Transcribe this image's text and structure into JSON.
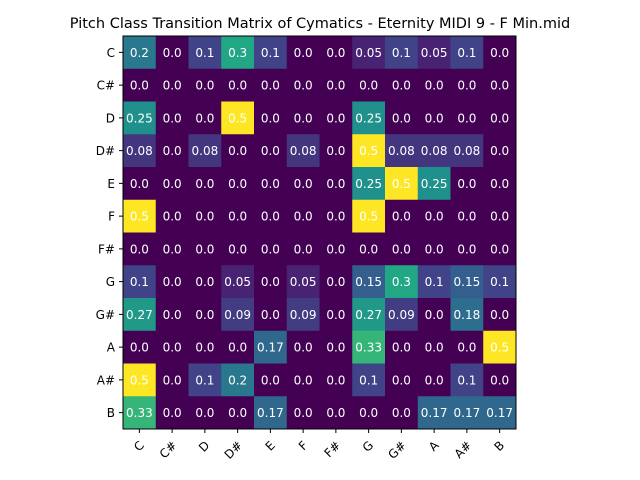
{
  "chart_data": {
    "type": "heatmap",
    "title": "Pitch Class Transition Matrix of Cymatics - Eternity MIDI 9 - F Min.mid",
    "xlabel": "",
    "ylabel": "",
    "x_categories": [
      "C",
      "C#",
      "D",
      "D#",
      "E",
      "F",
      "F#",
      "G",
      "G#",
      "A",
      "A#",
      "B"
    ],
    "y_categories": [
      "C",
      "C#",
      "D",
      "D#",
      "E",
      "F",
      "F#",
      "G",
      "G#",
      "A",
      "A#",
      "B"
    ],
    "colormap": "viridis",
    "value_range": [
      0,
      0.5
    ],
    "values": [
      [
        0.2,
        0.0,
        0.1,
        0.3,
        0.1,
        0.0,
        0.0,
        0.05,
        0.1,
        0.05,
        0.1,
        0.0
      ],
      [
        0.0,
        0.0,
        0.0,
        0.0,
        0.0,
        0.0,
        0.0,
        0.0,
        0.0,
        0.0,
        0.0,
        0.0
      ],
      [
        0.25,
        0.0,
        0.0,
        0.5,
        0.0,
        0.0,
        0.0,
        0.25,
        0.0,
        0.0,
        0.0,
        0.0
      ],
      [
        0.08,
        0.0,
        0.08,
        0.0,
        0.0,
        0.08,
        0.0,
        0.5,
        0.08,
        0.08,
        0.08,
        0.0
      ],
      [
        0.0,
        0.0,
        0.0,
        0.0,
        0.0,
        0.0,
        0.0,
        0.25,
        0.5,
        0.25,
        0.0,
        0.0
      ],
      [
        0.5,
        0.0,
        0.0,
        0.0,
        0.0,
        0.0,
        0.0,
        0.5,
        0.0,
        0.0,
        0.0,
        0.0
      ],
      [
        0.0,
        0.0,
        0.0,
        0.0,
        0.0,
        0.0,
        0.0,
        0.0,
        0.0,
        0.0,
        0.0,
        0.0
      ],
      [
        0.1,
        0.0,
        0.0,
        0.05,
        0.0,
        0.05,
        0.0,
        0.15,
        0.3,
        0.1,
        0.15,
        0.1
      ],
      [
        0.27,
        0.0,
        0.0,
        0.09,
        0.0,
        0.09,
        0.0,
        0.27,
        0.09,
        0.0,
        0.18,
        0.0
      ],
      [
        0.0,
        0.0,
        0.0,
        0.0,
        0.17,
        0.0,
        0.0,
        0.33,
        0.0,
        0.0,
        0.0,
        0.5
      ],
      [
        0.5,
        0.0,
        0.1,
        0.2,
        0.0,
        0.0,
        0.0,
        0.1,
        0.0,
        0.0,
        0.1,
        0.0
      ],
      [
        0.33,
        0.0,
        0.0,
        0.0,
        0.17,
        0.0,
        0.0,
        0.0,
        0.0,
        0.17,
        0.17,
        0.17
      ]
    ]
  }
}
